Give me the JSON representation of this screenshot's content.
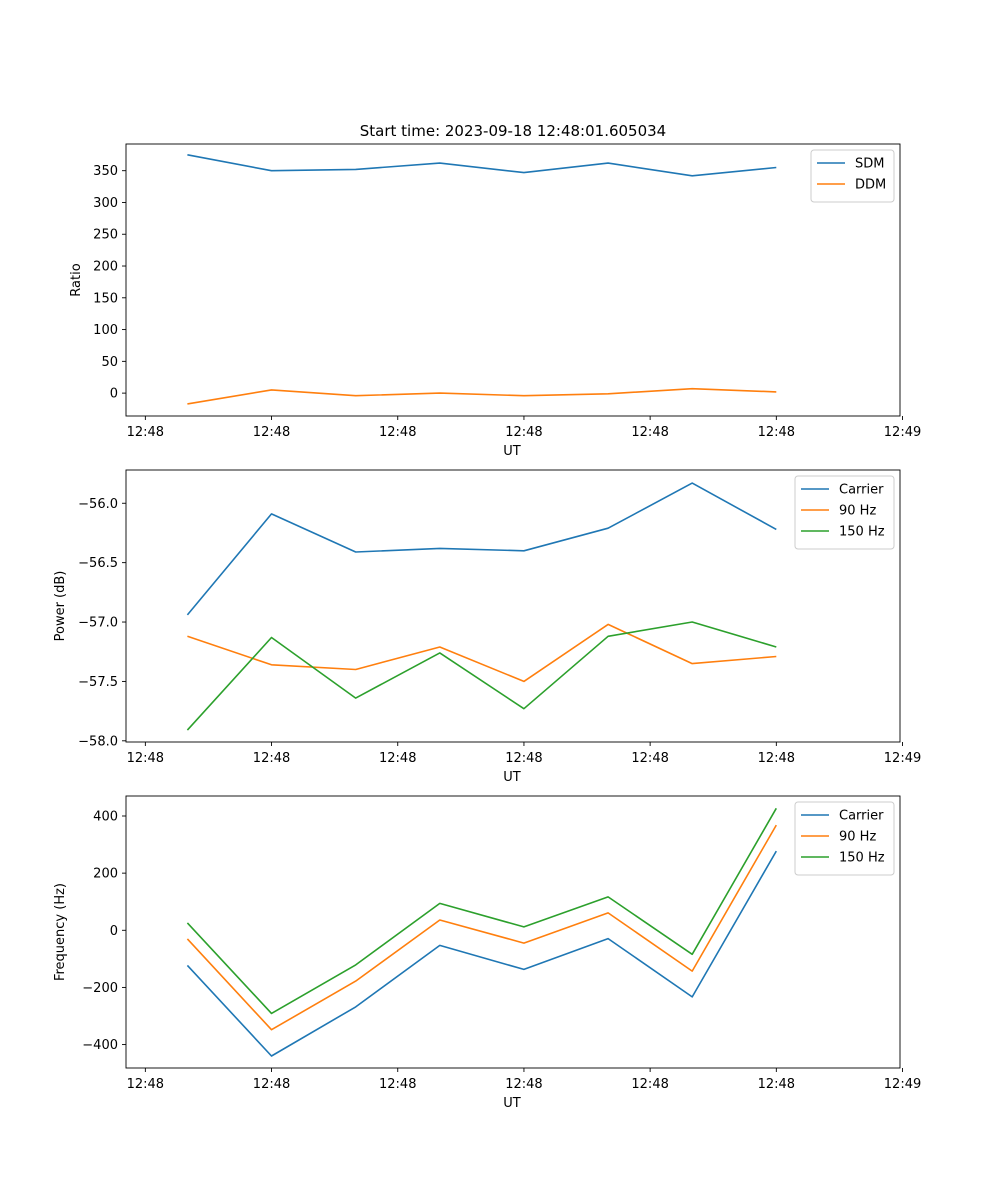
{
  "figure_title": "Start time: 2023-09-18 12:48:01.605034",
  "chart_data": [
    {
      "type": "line",
      "title": "Start time: 2023-09-18 12:48:01.605034",
      "xlabel": "UT",
      "ylabel": "Ratio",
      "x": [
        1,
        2,
        3,
        4,
        5,
        6,
        7,
        8
      ],
      "xlim": [
        0.27,
        9.47
      ],
      "ylim": [
        -36,
        392
      ],
      "xticks": [
        0.5,
        2,
        3.5,
        5,
        6.5,
        8,
        9.5
      ],
      "xtick_labels": [
        "12:48",
        "12:48",
        "12:48",
        "12:48",
        "12:48",
        "12:48",
        "12:49"
      ],
      "yticks": [
        0,
        50,
        100,
        150,
        200,
        250,
        300,
        350
      ],
      "ytick_labels": [
        "0",
        "50",
        "100",
        "150",
        "200",
        "250",
        "300",
        "350"
      ],
      "legend": "top-right",
      "series": [
        {
          "name": "SDM",
          "color": "#1f77b4",
          "values": [
            375,
            350,
            352,
            362,
            347,
            362,
            342,
            355
          ]
        },
        {
          "name": "DDM",
          "color": "#ff7f0e",
          "values": [
            -17,
            5,
            -4,
            0,
            -4,
            -1,
            7,
            2
          ]
        }
      ]
    },
    {
      "type": "line",
      "title": "",
      "xlabel": "UT",
      "ylabel": "Power (dB)",
      "x": [
        1,
        2,
        3,
        4,
        5,
        6,
        7,
        8
      ],
      "xlim": [
        0.27,
        9.47
      ],
      "ylim": [
        -58.01,
        -55.72
      ],
      "xticks": [
        0.5,
        2,
        3.5,
        5,
        6.5,
        8,
        9.5
      ],
      "xtick_labels": [
        "12:48",
        "12:48",
        "12:48",
        "12:48",
        "12:48",
        "12:48",
        "12:49"
      ],
      "yticks": [
        -58.0,
        -57.5,
        -57.0,
        -56.5,
        -56.0
      ],
      "ytick_labels": [
        "−58.0",
        "−57.5",
        "−57.0",
        "−56.5",
        "−56.0"
      ],
      "legend": "top-right",
      "series": [
        {
          "name": "Carrier",
          "color": "#1f77b4",
          "values": [
            -56.94,
            -56.09,
            -56.41,
            -56.38,
            -56.4,
            -56.21,
            -55.83,
            -56.22
          ]
        },
        {
          "name": "90 Hz",
          "color": "#ff7f0e",
          "values": [
            -57.12,
            -57.36,
            -57.4,
            -57.21,
            -57.5,
            -57.02,
            -57.35,
            -57.29
          ]
        },
        {
          "name": "150 Hz",
          "color": "#2ca02c",
          "values": [
            -57.91,
            -57.13,
            -57.64,
            -57.26,
            -57.73,
            -57.12,
            -57.0,
            -57.21
          ]
        }
      ]
    },
    {
      "type": "line",
      "title": "",
      "xlabel": "UT",
      "ylabel": "Frequency (Hz)",
      "x": [
        1,
        2,
        3,
        4,
        5,
        6,
        7,
        8
      ],
      "xlim": [
        0.27,
        9.47
      ],
      "ylim": [
        -482,
        470
      ],
      "xticks": [
        0.5,
        2,
        3.5,
        5,
        6.5,
        8,
        9.5
      ],
      "xtick_labels": [
        "12:48",
        "12:48",
        "12:48",
        "12:48",
        "12:48",
        "12:48",
        "12:49"
      ],
      "yticks": [
        -400,
        -200,
        0,
        200,
        400
      ],
      "ytick_labels": [
        "−400",
        "−200",
        "0",
        "200",
        "400"
      ],
      "legend": "top-right",
      "series": [
        {
          "name": "Carrier",
          "color": "#1f77b4",
          "values": [
            -123,
            -440,
            -268,
            -53,
            -137,
            -29,
            -233,
            277
          ]
        },
        {
          "name": "90 Hz",
          "color": "#ff7f0e",
          "values": [
            -30,
            -348,
            -178,
            36,
            -45,
            61,
            -143,
            368
          ]
        },
        {
          "name": "150 Hz",
          "color": "#2ca02c",
          "values": [
            26,
            -291,
            -121,
            94,
            12,
            117,
            -84,
            427
          ]
        }
      ]
    }
  ]
}
